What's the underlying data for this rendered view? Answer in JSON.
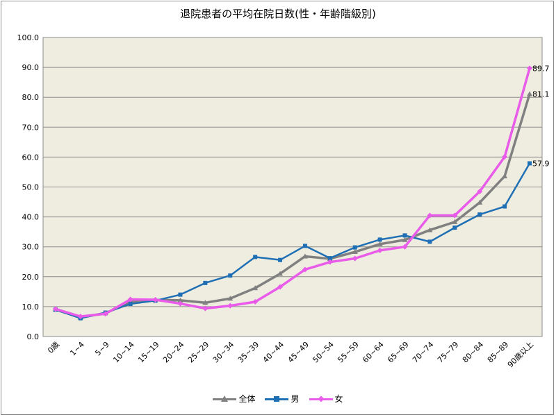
{
  "chart_data": {
    "type": "line",
    "title": "退院患者の平均在院日数(性・年齢階級別)",
    "xlabel": "",
    "ylabel": "",
    "ylim": [
      0,
      100
    ],
    "yticks": [
      "0.0",
      "10.0",
      "20.0",
      "30.0",
      "40.0",
      "50.0",
      "60.0",
      "70.0",
      "80.0",
      "90.0",
      "100.0"
    ],
    "grid": true,
    "legend_position": "bottom",
    "plot_background": "#eeede0",
    "categories": [
      "0歳",
      "1~4",
      "5~9",
      "10~14",
      "15~19",
      "20~24",
      "25~29",
      "30~34",
      "35~39",
      "40~44",
      "45~49",
      "50~54",
      "55~59",
      "60~64",
      "65~69",
      "70~74",
      "75~79",
      "80~84",
      "85~89",
      "90歳以上"
    ],
    "series": [
      {
        "name": "全体",
        "color": "#808080",
        "marker": "triangle",
        "values": [
          9.0,
          6.4,
          7.8,
          11.5,
          12.2,
          12.1,
          11.3,
          12.7,
          16.2,
          21.0,
          26.8,
          26.0,
          28.3,
          30.9,
          32.3,
          35.6,
          38.3,
          44.8,
          53.6,
          81.1
        ],
        "end_label": "81.1"
      },
      {
        "name": "男",
        "color": "#1f6fb4",
        "marker": "square",
        "values": [
          9.0,
          6.1,
          8.0,
          10.9,
          12.0,
          14.0,
          17.9,
          20.4,
          26.6,
          25.6,
          30.3,
          26.2,
          29.8,
          32.4,
          33.8,
          31.7,
          36.4,
          40.8,
          43.5,
          57.9
        ],
        "end_label": "57.9"
      },
      {
        "name": "女",
        "color": "#e95be9",
        "marker": "diamond",
        "values": [
          9.2,
          6.7,
          7.6,
          12.4,
          12.3,
          11.0,
          9.4,
          10.3,
          11.6,
          16.6,
          22.4,
          24.9,
          26.1,
          28.8,
          30.0,
          40.5,
          40.5,
          48.5,
          60.1,
          89.7
        ],
        "end_label": "89.7"
      }
    ]
  }
}
